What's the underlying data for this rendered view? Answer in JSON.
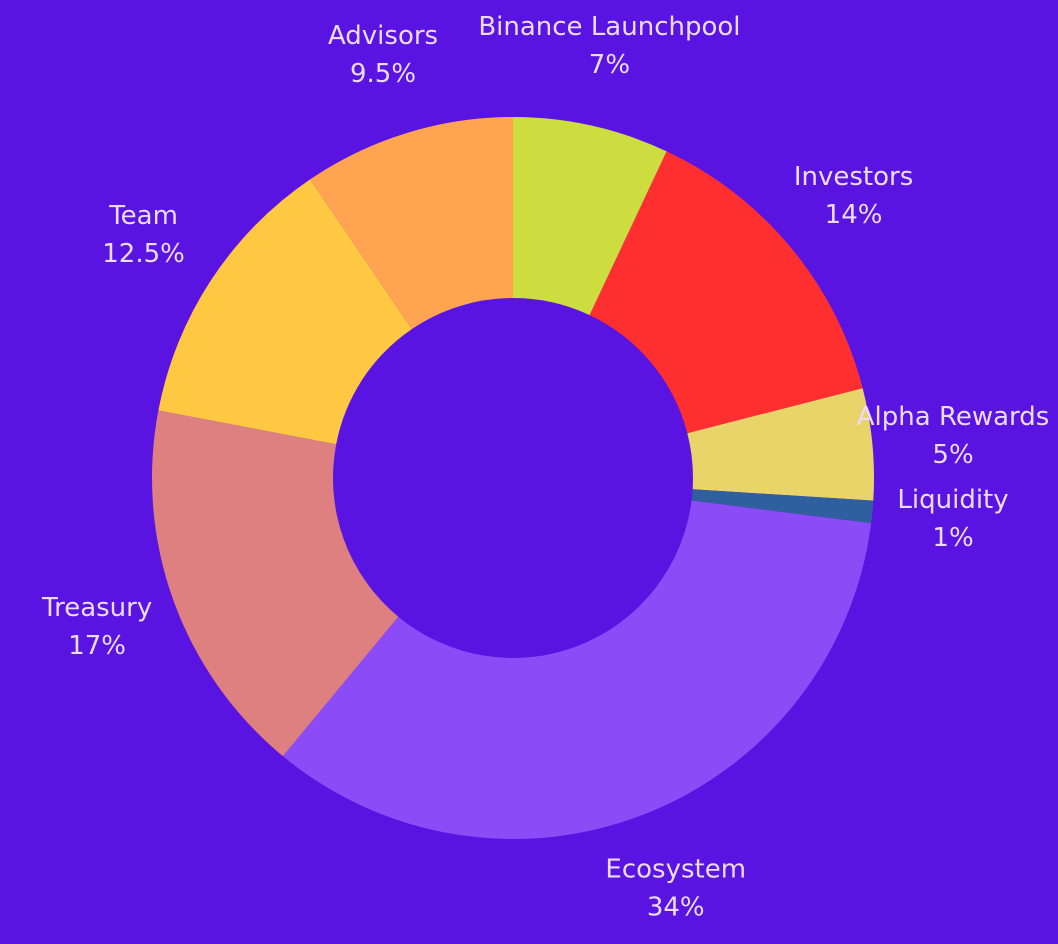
{
  "chart_data": {
    "type": "donut",
    "categories": [
      "Binance Launchpool",
      "Investors",
      "Alpha Rewards",
      "Liquidity",
      "Ecosystem",
      "Treasury",
      "Team",
      "Advisors"
    ],
    "values": [
      7,
      14,
      5,
      1,
      34,
      17,
      12.5,
      9.5
    ],
    "value_labels": [
      "7%",
      "14%",
      "5%",
      "1%",
      "34%",
      "17%",
      "12.5%",
      "9.5%"
    ],
    "colors": [
      "#cddc3e",
      "#ff2f2f",
      "#e9d46a",
      "#2f5f9e",
      "#8b4cf7",
      "#de8080",
      "#ffc843",
      "#ffa552"
    ]
  }
}
